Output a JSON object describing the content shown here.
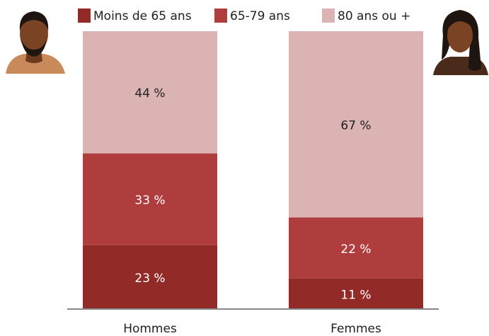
{
  "chart_data": {
    "type": "stacked-bar",
    "categories": [
      "Hommes",
      "Femmes"
    ],
    "series": [
      {
        "name": "Moins de 65 ans",
        "color": "#922b28",
        "values": [
          23,
          11
        ],
        "value_labels": [
          "23 %",
          "11 %"
        ]
      },
      {
        "name": "65-79 ans",
        "color": "#b03d3d",
        "values": [
          33,
          22
        ],
        "value_labels": [
          "33 %",
          "22 %"
        ]
      },
      {
        "name": "80 ans ou +",
        "color": "#dbb3b3",
        "values": [
          44,
          67
        ],
        "value_labels": [
          "44 %",
          "67 %"
        ]
      }
    ],
    "ylim": [
      0,
      100
    ]
  }
}
